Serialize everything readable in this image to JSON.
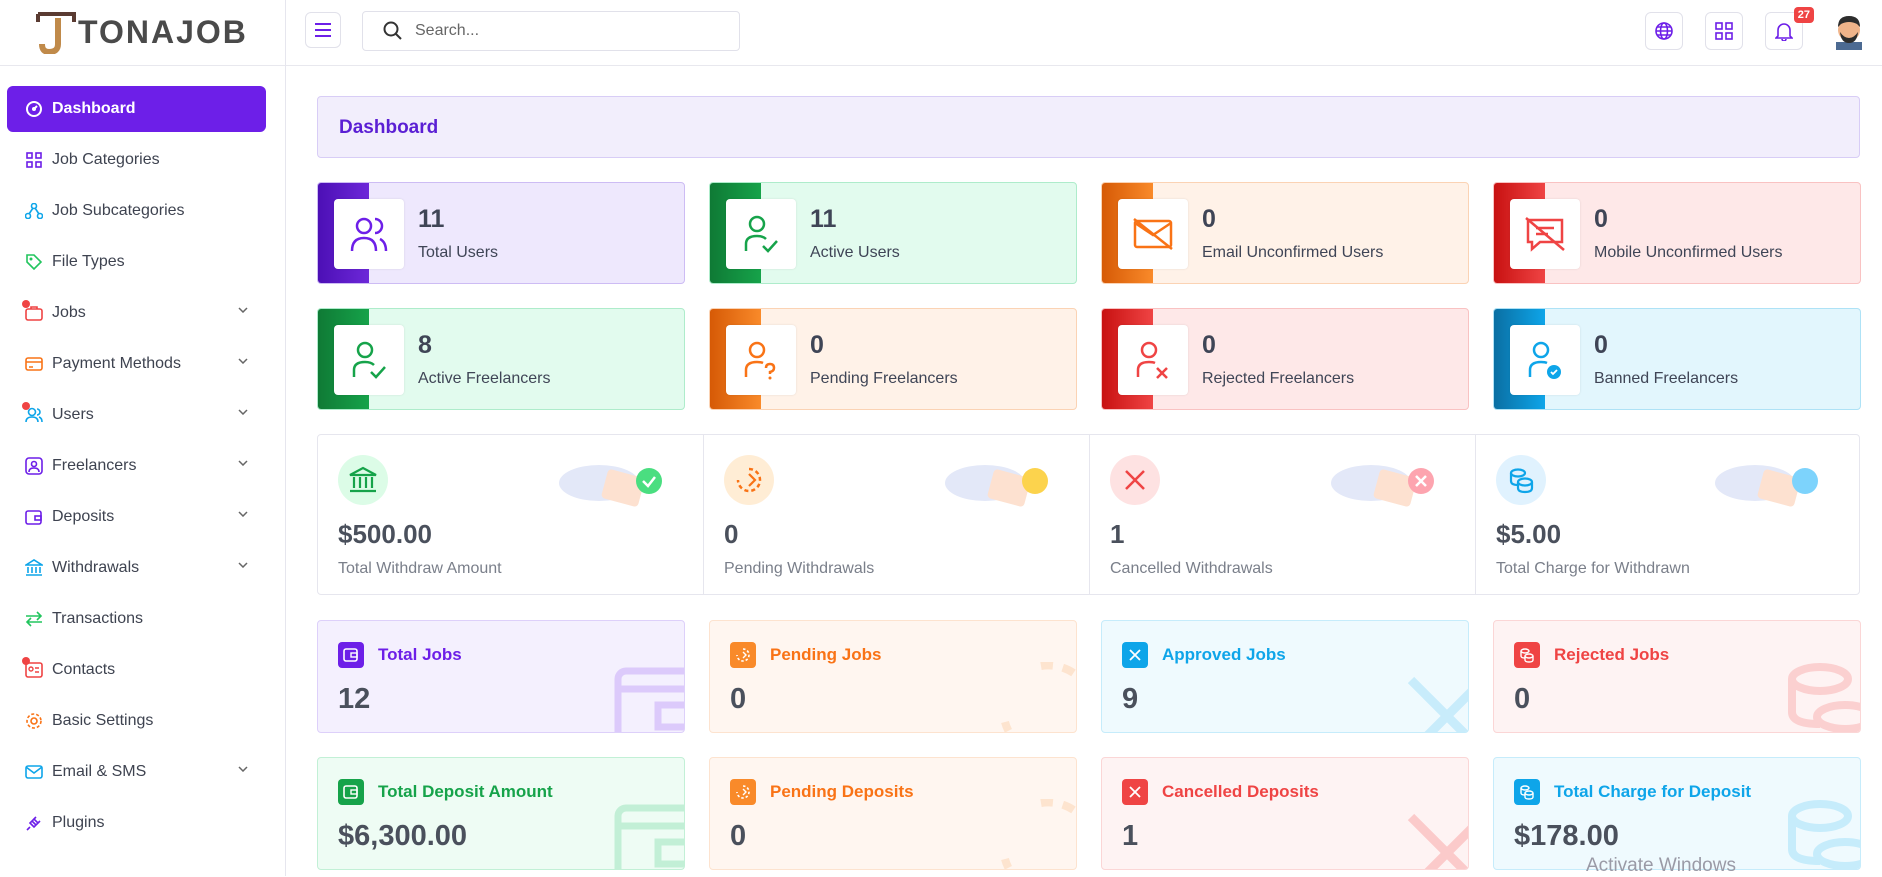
{
  "brand": {
    "name": "TONAJOB"
  },
  "search": {
    "placeholder": "Search..."
  },
  "header": {
    "notification_count": "27"
  },
  "sidebar": {
    "items": [
      {
        "label": "Dashboard"
      },
      {
        "label": "Job Categories"
      },
      {
        "label": "Job Subcategories"
      },
      {
        "label": "File Types"
      },
      {
        "label": "Jobs"
      },
      {
        "label": "Payment Methods"
      },
      {
        "label": "Users"
      },
      {
        "label": "Freelancers"
      },
      {
        "label": "Deposits"
      },
      {
        "label": "Withdrawals"
      },
      {
        "label": "Transactions"
      },
      {
        "label": "Contacts"
      },
      {
        "label": "Basic Settings"
      },
      {
        "label": "Email & SMS"
      },
      {
        "label": "Plugins"
      }
    ]
  },
  "page": {
    "title": "Dashboard"
  },
  "user_cards": [
    {
      "value": "11",
      "label": "Total Users",
      "icon": "users-icon"
    },
    {
      "value": "11",
      "label": "Active Users",
      "icon": "user-check-icon"
    },
    {
      "value": "0",
      "label": "Email Unconfirmed Users",
      "icon": "mail-off-icon"
    },
    {
      "value": "0",
      "label": "Mobile Unconfirmed Users",
      "icon": "message-off-icon"
    },
    {
      "value": "8",
      "label": "Active Freelancers",
      "icon": "user-check-icon"
    },
    {
      "value": "0",
      "label": "Pending Freelancers",
      "icon": "user-question-icon"
    },
    {
      "value": "0",
      "label": "Rejected Freelancers",
      "icon": "user-x-icon"
    },
    {
      "value": "0",
      "label": "Banned Freelancers",
      "icon": "user-ban-icon"
    }
  ],
  "withdraw_stats": [
    {
      "value": "$500.00",
      "label": "Total Withdraw Amount",
      "icon": "bank-icon"
    },
    {
      "value": "0",
      "label": "Pending Withdrawals",
      "icon": "loader-icon"
    },
    {
      "value": "1",
      "label": "Cancelled Withdrawals",
      "icon": "x-icon"
    },
    {
      "value": "$5.00",
      "label": "Total Charge for Withdrawn",
      "icon": "coins-icon"
    }
  ],
  "job_cards": [
    {
      "title": "Total Jobs",
      "value": "12",
      "icon": "wallet-icon"
    },
    {
      "title": "Pending Jobs",
      "value": "0",
      "icon": "loader-icon"
    },
    {
      "title": "Approved Jobs",
      "value": "9",
      "icon": "x-icon"
    },
    {
      "title": "Rejected Jobs",
      "value": "0",
      "icon": "coins-icon"
    },
    {
      "title": "Total Deposit Amount",
      "value": "$6,300.00",
      "icon": "wallet-icon"
    },
    {
      "title": "Pending Deposits",
      "value": "0",
      "icon": "loader-icon"
    },
    {
      "title": "Cancelled Deposits",
      "value": "1",
      "icon": "x-icon"
    },
    {
      "title": "Total Charge for Deposit",
      "value": "$178.00",
      "icon": "coins-icon"
    }
  ],
  "colors": {
    "primary": "#6d1fe8",
    "green": "#16a34a",
    "orange": "#f97316",
    "red": "#ef4444",
    "cyan": "#0ea5e9"
  },
  "os_overlay": {
    "text": "Activate Windows"
  }
}
